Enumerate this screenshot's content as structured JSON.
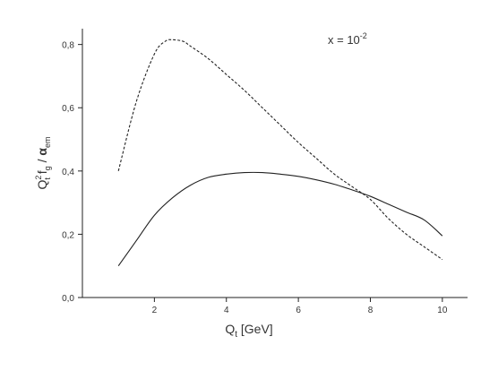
{
  "chart_data": {
    "type": "line",
    "title": "",
    "annotation": {
      "base": "x = 10",
      "exponent": "-2"
    },
    "xlabel": {
      "main": "Q",
      "sub": "t",
      "rest": " [GeV]"
    },
    "ylabel": {
      "q": "Q",
      "q_sup": "2",
      "q_sub": "t",
      "f": " f",
      "f_sub": "g",
      "slash": " / ",
      "alpha": "α",
      "alpha_sub": "em"
    },
    "xlim": [
      0,
      10.7
    ],
    "ylim": [
      0,
      0.85
    ],
    "xticks": [
      2,
      4,
      6,
      8,
      10
    ],
    "xtick_labels": [
      "2",
      "4",
      "6",
      "8",
      "10"
    ],
    "yticks": [
      0.0,
      0.2,
      0.4,
      0.6,
      0.8
    ],
    "ytick_labels": [
      "0,0",
      "0,2",
      "0,4",
      "0,6",
      "0,8"
    ],
    "grid": false,
    "series": [
      {
        "style": "solid",
        "x": [
          1.0,
          1.5,
          2.0,
          2.5,
          3.0,
          3.5,
          4.0,
          4.5,
          5.0,
          5.5,
          6.0,
          6.5,
          7.0,
          7.5,
          8.0,
          8.5,
          9.0,
          9.5,
          10.0
        ],
        "y": [
          0.1,
          0.18,
          0.26,
          0.315,
          0.355,
          0.38,
          0.39,
          0.395,
          0.395,
          0.39,
          0.383,
          0.372,
          0.358,
          0.34,
          0.32,
          0.295,
          0.27,
          0.245,
          0.195
        ]
      },
      {
        "style": "dashed",
        "x": [
          1.0,
          1.5,
          2.0,
          2.3,
          2.5,
          2.8,
          3.0,
          3.5,
          4.0,
          4.5,
          5.0,
          5.5,
          6.0,
          6.5,
          7.0,
          7.5,
          8.0,
          8.5,
          9.0,
          9.5,
          10.0
        ],
        "y": [
          0.4,
          0.62,
          0.77,
          0.81,
          0.815,
          0.81,
          0.795,
          0.755,
          0.705,
          0.655,
          0.6,
          0.545,
          0.49,
          0.44,
          0.39,
          0.35,
          0.31,
          0.25,
          0.2,
          0.16,
          0.12
        ]
      }
    ],
    "colors": {
      "line": "#222222",
      "axis": "#222222",
      "background": "#ffffff"
    }
  }
}
